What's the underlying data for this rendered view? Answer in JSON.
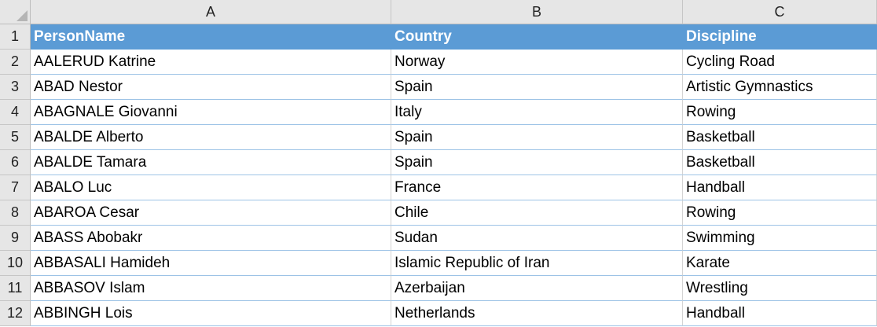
{
  "sheet": {
    "columns": [
      "A",
      "B",
      "C"
    ],
    "header": {
      "row_number": "1",
      "cells": [
        "PersonName",
        "Country",
        "Discipline"
      ]
    },
    "rows": [
      {
        "num": "2",
        "cells": [
          "AALERUD Katrine",
          "Norway",
          "Cycling Road"
        ]
      },
      {
        "num": "3",
        "cells": [
          "ABAD Nestor",
          "Spain",
          "Artistic Gymnastics"
        ]
      },
      {
        "num": "4",
        "cells": [
          "ABAGNALE Giovanni",
          "Italy",
          "Rowing"
        ]
      },
      {
        "num": "5",
        "cells": [
          "ABALDE Alberto",
          "Spain",
          "Basketball"
        ]
      },
      {
        "num": "6",
        "cells": [
          "ABALDE Tamara",
          "Spain",
          "Basketball"
        ]
      },
      {
        "num": "7",
        "cells": [
          "ABALO Luc",
          "France",
          "Handball"
        ]
      },
      {
        "num": "8",
        "cells": [
          "ABAROA Cesar",
          "Chile",
          "Rowing"
        ]
      },
      {
        "num": "9",
        "cells": [
          "ABASS Abobakr",
          "Sudan",
          "Swimming"
        ]
      },
      {
        "num": "10",
        "cells": [
          "ABBASALI Hamideh",
          "Islamic Republic of Iran",
          "Karate"
        ]
      },
      {
        "num": "11",
        "cells": [
          "ABBASOV Islam",
          "Azerbaijan",
          "Wrestling"
        ]
      },
      {
        "num": "12",
        "cells": [
          "ABBINGH Lois",
          "Netherlands",
          "Handball"
        ]
      }
    ]
  },
  "colors": {
    "header_fill": "#5b9bd5",
    "header_text": "#ffffff",
    "row_border": "#9dc3e6",
    "headings_fill": "#e6e6e6"
  }
}
